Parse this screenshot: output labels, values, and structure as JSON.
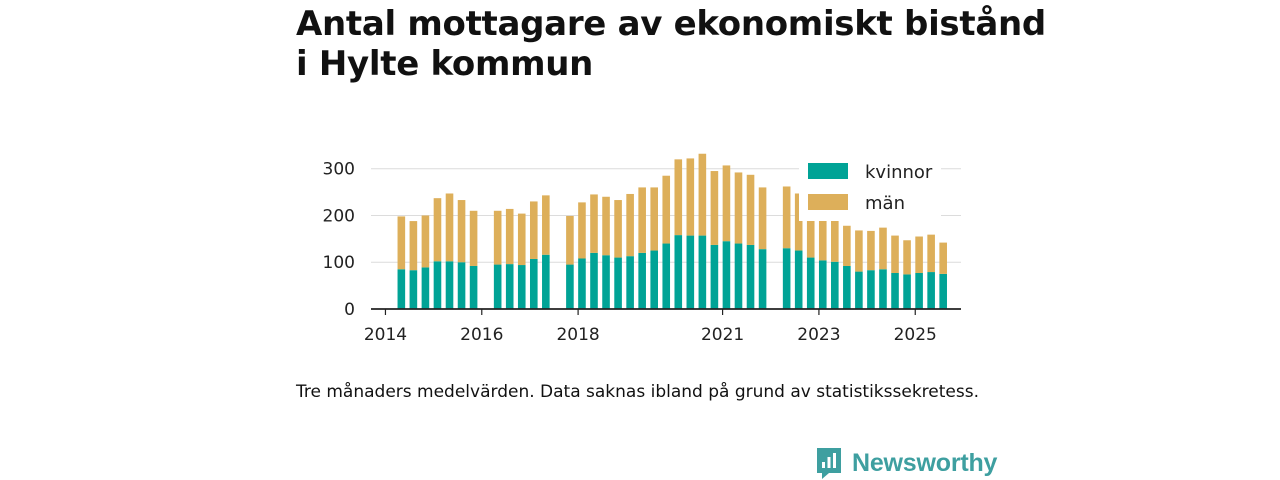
{
  "title_lines": [
    "Antal mottagare av ekonomiskt bistånd",
    "i Hylte kommun"
  ],
  "caption": "Tre månaders medelvärden. Data saknas ibland på grund av statistikssekretess.",
  "brand": {
    "name": "Newsworthy",
    "icon": "newsworthy-logo-icon",
    "color": "#3e9fa0"
  },
  "chart_data": {
    "type": "bar",
    "stacked": true,
    "title": "Antal mottagare av ekonomiskt bistånd i Hylte kommun",
    "xlabel": "",
    "ylabel": "",
    "ylim": [
      0,
      340
    ],
    "yticks": [
      0,
      100,
      200,
      300
    ],
    "xlim": [
      2013.7,
      2025.95
    ],
    "xticks": [
      2014,
      2016,
      2018,
      2021,
      2023,
      2025
    ],
    "grid": true,
    "legend_position": "top-right",
    "colors": {
      "kvinnor": "#00a396",
      "män": "#ddaf5a"
    },
    "x": [
      2014.33,
      2014.58,
      2014.83,
      2015.08,
      2015.33,
      2015.58,
      2015.83,
      2016.33,
      2016.58,
      2016.83,
      2017.08,
      2017.33,
      2017.83,
      2018.08,
      2018.33,
      2018.58,
      2018.83,
      2019.08,
      2019.33,
      2019.58,
      2019.83,
      2020.08,
      2020.33,
      2020.58,
      2020.83,
      2021.08,
      2021.33,
      2021.58,
      2021.83,
      2022.33,
      2022.58,
      2022.83,
      2023.08,
      2023.33,
      2023.58,
      2023.83,
      2024.08,
      2024.33,
      2024.58,
      2024.83,
      2025.08,
      2025.33,
      2025.58
    ],
    "series": [
      {
        "name": "kvinnor",
        "values": [
          85,
          83,
          89,
          102,
          102,
          100,
          92,
          95,
          96,
          94,
          107,
          116,
          95,
          108,
          120,
          115,
          110,
          113,
          120,
          125,
          140,
          158,
          157,
          157,
          137,
          145,
          140,
          137,
          128,
          130,
          125,
          110,
          104,
          101,
          92,
          80,
          83,
          85,
          77,
          74,
          77,
          79,
          75
        ]
      },
      {
        "name": "män",
        "values": [
          113,
          105,
          111,
          135,
          145,
          133,
          118,
          115,
          118,
          110,
          123,
          127,
          104,
          120,
          125,
          125,
          123,
          133,
          140,
          135,
          145,
          162,
          165,
          175,
          158,
          162,
          152,
          150,
          132,
          132,
          122,
          88,
          90,
          90,
          86,
          88,
          84,
          89,
          80,
          73,
          78,
          80,
          67
        ]
      }
    ]
  }
}
